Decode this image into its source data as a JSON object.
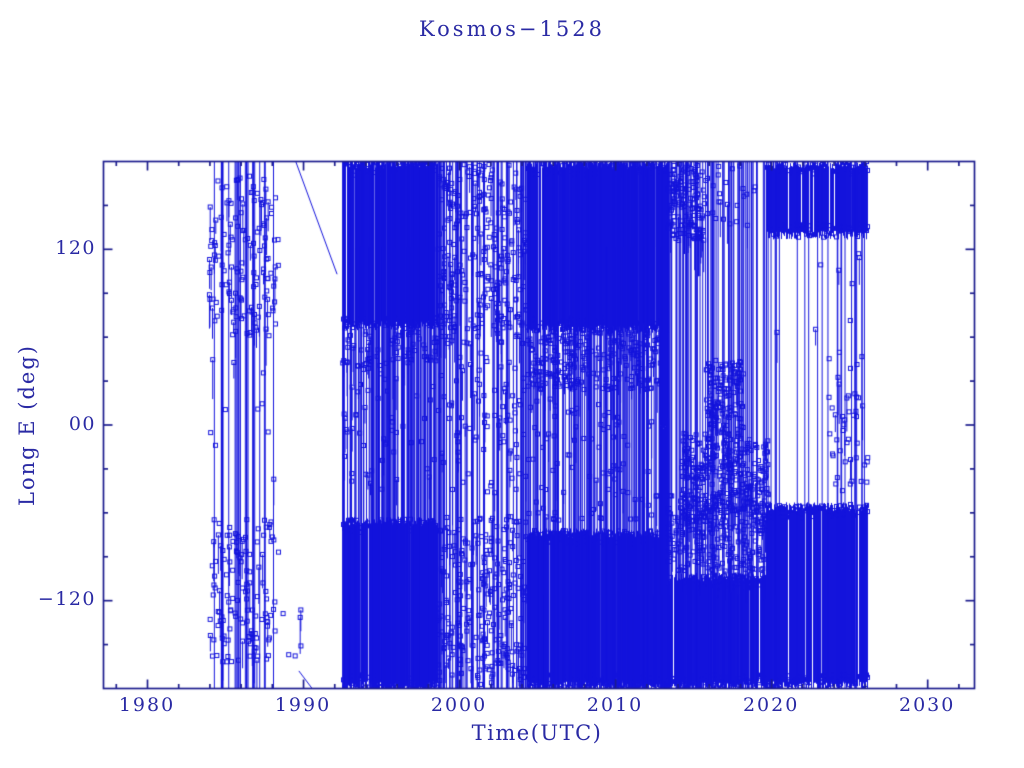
{
  "title": "Kosmos−1528",
  "axes": {
    "x": {
      "label": "Time(UTC)",
      "min": 1977.18,
      "max": 2033.0,
      "ticks": [
        {
          "v": 1980,
          "label": "1980"
        },
        {
          "v": 1990,
          "label": "1990"
        },
        {
          "v": 2000,
          "label": "2000"
        },
        {
          "v": 2010,
          "label": "2010"
        },
        {
          "v": 2020,
          "label": "2020"
        },
        {
          "v": 2030,
          "label": "2030"
        }
      ],
      "minor_step_years": 2
    },
    "y": {
      "label": "Long E (deg)",
      "min": -180,
      "max": 180,
      "ticks": [
        {
          "v": 120,
          "label": "120"
        },
        {
          "v": 0,
          "label": "00"
        },
        {
          "v": -120,
          "label": "−120"
        }
      ],
      "minor_step_deg": 30
    }
  },
  "colors": {
    "background": "#ffffff",
    "axis": "#1d1d8e",
    "text": "#2a2aa4",
    "data": "#1414dc"
  },
  "chart_data": {
    "type": "scatter",
    "title": "Kosmos−1528",
    "xlabel": "Time(UTC)",
    "ylabel": "Long E (deg)",
    "xlim": [
      1977.18,
      2033.0
    ],
    "ylim": [
      -180,
      180
    ],
    "grid": false,
    "legend": "none",
    "marker": "open-square",
    "line_style": "vertical wrap lines between ±180",
    "description": "Sub-satellite longitude of Kosmos-1528 vs time; longitude wraps at ±180 deg producing dense vertical bands. Data spans ~1984.0 to ~2026.2.",
    "segments": [
      {
        "name": "early-1980s",
        "x0": 1983.9,
        "x1": 1988.4,
        "vlines": 26,
        "solids": [],
        "clusters": [
          {
            "y0": 60,
            "y1": 170,
            "n": 140
          },
          {
            "y0": -162,
            "y1": -62,
            "n": 130
          },
          {
            "y0": -40,
            "y1": 55,
            "n": 10
          }
        ]
      },
      {
        "name": "late-1980s-gap",
        "x0": 1988.5,
        "x1": 1989.9,
        "vlines": 0,
        "solids": [],
        "clusters": [
          {
            "y0": -160,
            "y1": -122,
            "n": 6
          }
        ]
      },
      {
        "name": "mid-1990s-dense",
        "x0": 1992.5,
        "x1": 1998.6,
        "vlines": 120,
        "solids": [
          {
            "y0": 66,
            "y1": 180
          },
          {
            "y0": -180,
            "y1": -64
          }
        ],
        "clusters": [
          {
            "y0": 40,
            "y1": 66,
            "n": 70
          },
          {
            "y0": -45,
            "y1": 40,
            "n": 50
          }
        ]
      },
      {
        "name": "around-2000-moderate",
        "x0": 1998.6,
        "x1": 2004.3,
        "vlines": 65,
        "solids": [],
        "clusters": [
          {
            "y0": 55,
            "y1": 178,
            "n": 280
          },
          {
            "y0": -178,
            "y1": -62,
            "n": 260
          },
          {
            "y0": -50,
            "y1": 50,
            "n": 80
          }
        ]
      },
      {
        "name": "2004-2013-dense",
        "x0": 2004.3,
        "x1": 2013.3,
        "vlines": 140,
        "solids": [
          {
            "y0": 64,
            "y1": 180
          },
          {
            "y0": -180,
            "y1": -72
          }
        ],
        "clusters": [
          {
            "y0": 24,
            "y1": 64,
            "n": 260
          },
          {
            "y0": -65,
            "y1": 20,
            "n": 90
          }
        ]
      },
      {
        "name": "2013-burst",
        "x0": 2012.75,
        "x1": 2013.4,
        "vlines": 10,
        "solids": [
          {
            "y0": -180,
            "y1": 180
          }
        ],
        "clusters": []
      },
      {
        "name": "mid-2010s",
        "x0": 2013.4,
        "x1": 2019.7,
        "vlines": 70,
        "solids": [
          {
            "y0": -180,
            "y1": -102
          }
        ],
        "clusters": [
          {
            "y0": 125,
            "y1": 180,
            "n": 150,
            "x0": 2013.4,
            "x1": 2015.7
          },
          {
            "y0": 130,
            "y1": 180,
            "n": 25,
            "x0": 2015.7,
            "x1": 2019.6
          },
          {
            "y0": -60,
            "y1": 45,
            "n": 280,
            "x0": 2015.8,
            "x1": 2018.2
          },
          {
            "y0": -75,
            "y1": -5,
            "n": 120,
            "x0": 2014.2,
            "x1": 2015.8
          },
          {
            "y0": -75,
            "y1": -10,
            "n": 90,
            "x0": 2018.2,
            "x1": 2019.8
          },
          {
            "y0": -100,
            "y1": -48,
            "n": 230
          }
        ]
      },
      {
        "name": "2020s-dense",
        "x0": 2019.7,
        "x1": 2026.2,
        "vlines": 24,
        "solids": [
          {
            "y0": 128,
            "y1": 180
          },
          {
            "y0": -180,
            "y1": -54
          }
        ],
        "clusters": [
          {
            "y0": -45,
            "y1": 55,
            "n": 45,
            "x0": 2023.6,
            "x1": 2026.2
          },
          {
            "y0": 60,
            "y1": 120,
            "n": 8
          }
        ]
      }
    ],
    "polylines": [
      [
        [
          1989.5,
          180
        ],
        [
          1992.15,
          103
        ]
      ],
      [
        [
          1989.7,
          -168
        ],
        [
          1990.55,
          -180
        ]
      ]
    ]
  }
}
